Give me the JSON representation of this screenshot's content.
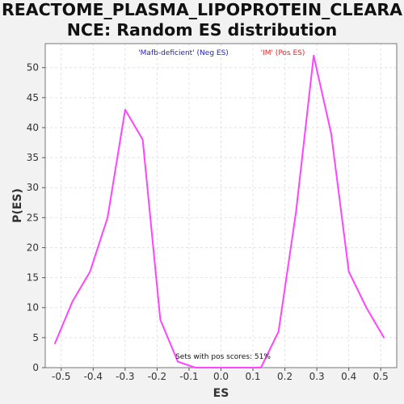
{
  "title_lines": [
    "REACTOME_PLASMA_LIPOPROTEIN_CLEARA",
    "NCE: Random ES distribution"
  ],
  "chart_data": {
    "type": "line",
    "title": "REACTOME_PLASMA_LIPOPROTEIN_CLEARANCE: Random ES distribution",
    "xlabel": "ES",
    "ylabel": "P(ES)",
    "xlim": [
      -0.55,
      0.55
    ],
    "ylim": [
      0,
      54
    ],
    "xticks": [
      -0.5,
      -0.4,
      -0.3,
      -0.2,
      -0.1,
      0.0,
      0.1,
      0.2,
      0.3,
      0.4,
      0.5
    ],
    "xtick_labels": [
      "-0.5",
      "-0.4",
      "-0.3",
      "-0.2",
      "-0.1",
      "0.0",
      "0.1",
      "0.2",
      "0.3",
      "0.4",
      "0.5"
    ],
    "yticks": [
      0,
      5,
      10,
      15,
      20,
      25,
      30,
      35,
      40,
      45,
      50
    ],
    "grid": true,
    "series": [
      {
        "color": "#ff44ff",
        "x": [
          -0.52,
          -0.465,
          -0.41,
          -0.355,
          -0.3,
          -0.245,
          -0.19,
          -0.135,
          -0.08,
          -0.025,
          0.03,
          0.085,
          0.125,
          0.18,
          0.235,
          0.29,
          0.345,
          0.4,
          0.455,
          0.51
        ],
        "y": [
          4,
          11,
          16,
          25,
          43,
          38,
          8,
          1,
          0,
          0,
          0,
          0,
          0,
          6,
          26,
          52,
          39,
          16,
          10,
          5
        ]
      }
    ],
    "legend": [
      {
        "text": "'Mafb-deficient' (Neg ES)",
        "color": "#2222bb"
      },
      {
        "text": "'IM' (Pos ES)",
        "color": "#ee2222"
      }
    ],
    "annotation": "Sets with pos scores: 51%"
  }
}
